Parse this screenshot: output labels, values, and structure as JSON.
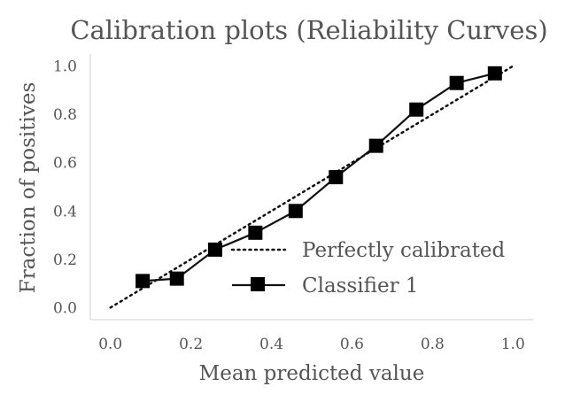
{
  "chart_data": {
    "type": "line",
    "title": "Calibration plots (Reliability Curves)",
    "xlabel": "Mean predicted value",
    "ylabel": "Fraction of positives",
    "xlim": [
      -0.05,
      1.05
    ],
    "ylim": [
      -0.05,
      1.05
    ],
    "x_ticks": [
      "0.0",
      "0.2",
      "0.4",
      "0.6",
      "0.8",
      "1.0"
    ],
    "y_ticks": [
      "0.0",
      "0.2",
      "0.4",
      "0.6",
      "0.8",
      "1.0"
    ],
    "grid": false,
    "legend_position": "lower-right",
    "series": [
      {
        "name": "Perfectly calibrated",
        "style": "dotted",
        "color": "#111111",
        "x": [
          0.0,
          1.0
        ],
        "y": [
          0.0,
          1.0
        ]
      },
      {
        "name": "Classifier 1",
        "style": "solid",
        "marker": "square",
        "color": "#111111",
        "x": [
          0.08,
          0.165,
          0.26,
          0.36,
          0.46,
          0.56,
          0.66,
          0.76,
          0.86,
          0.955
        ],
        "y": [
          0.11,
          0.12,
          0.24,
          0.31,
          0.4,
          0.54,
          0.67,
          0.82,
          0.93,
          0.97
        ]
      }
    ]
  }
}
